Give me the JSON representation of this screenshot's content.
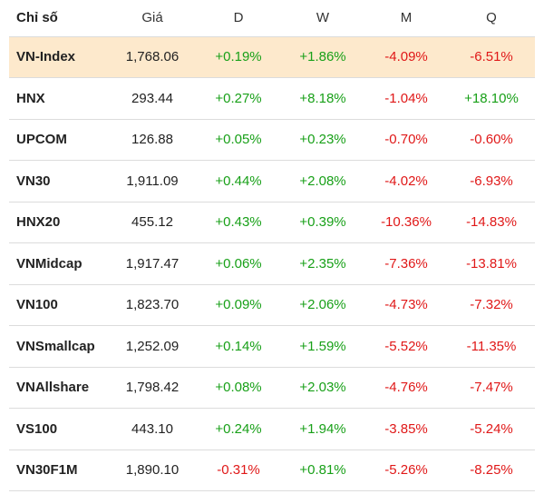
{
  "colors": {
    "positive": "#18a018",
    "negative": "#e01818",
    "highlight_row": "#fde9cc"
  },
  "header": {
    "name": "Chỉ số",
    "price": "Giá",
    "d": "D",
    "w": "W",
    "m": "M",
    "q": "Q"
  },
  "rows": [
    {
      "name": "VN-Index",
      "price": "1,768.06",
      "d": "+0.19%",
      "w": "+1.86%",
      "m": "-4.09%",
      "q": "-6.51%",
      "highlighted": true
    },
    {
      "name": "HNX",
      "price": "293.44",
      "d": "+0.27%",
      "w": "+8.18%",
      "m": "-1.04%",
      "q": "+18.10%"
    },
    {
      "name": "UPCOM",
      "price": "126.88",
      "d": "+0.05%",
      "w": "+0.23%",
      "m": "-0.70%",
      "q": "-0.60%"
    },
    {
      "name": "VN30",
      "price": "1,911.09",
      "d": "+0.44%",
      "w": "+2.08%",
      "m": "-4.02%",
      "q": "-6.93%"
    },
    {
      "name": "HNX20",
      "price": "455.12",
      "d": "+0.43%",
      "w": "+0.39%",
      "m": "-10.36%",
      "q": "-14.83%"
    },
    {
      "name": "VNMidcap",
      "price": "1,917.47",
      "d": "+0.06%",
      "w": "+2.35%",
      "m": "-7.36%",
      "q": "-13.81%"
    },
    {
      "name": "VN100",
      "price": "1,823.70",
      "d": "+0.09%",
      "w": "+2.06%",
      "m": "-4.73%",
      "q": "-7.32%"
    },
    {
      "name": "VNSmallcap",
      "price": "1,252.09",
      "d": "+0.14%",
      "w": "+1.59%",
      "m": "-5.52%",
      "q": "-11.35%"
    },
    {
      "name": "VNAllshare",
      "price": "1,798.42",
      "d": "+0.08%",
      "w": "+2.03%",
      "m": "-4.76%",
      "q": "-7.47%"
    },
    {
      "name": "VS100",
      "price": "443.10",
      "d": "+0.24%",
      "w": "+1.94%",
      "m": "-3.85%",
      "q": "-5.24%"
    },
    {
      "name": "VN30F1M",
      "price": "1,890.10",
      "d": "-0.31%",
      "w": "+0.81%",
      "m": "-5.26%",
      "q": "-8.25%"
    }
  ]
}
